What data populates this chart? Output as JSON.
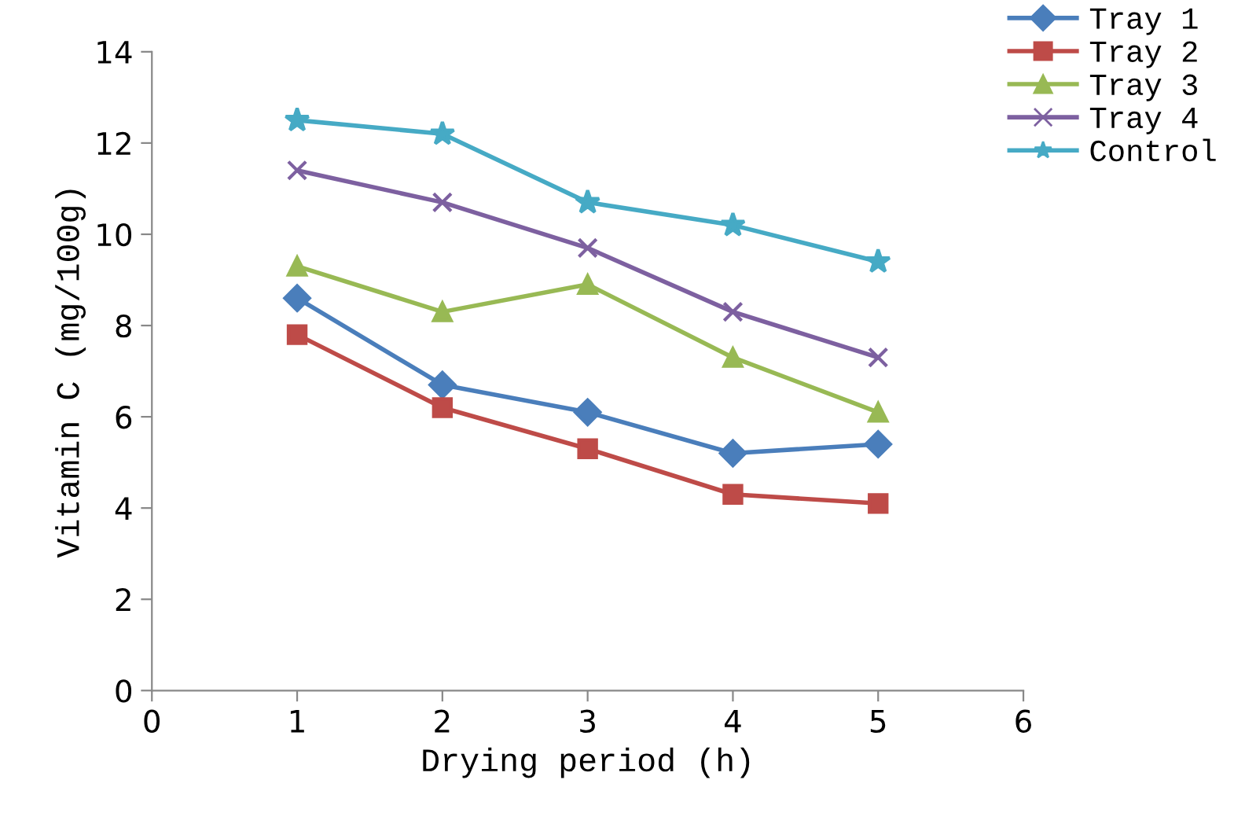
{
  "chart_data": {
    "type": "line",
    "xlabel": "Drying period (h)",
    "ylabel": "Vitamin C (mg/100g)",
    "x": [
      1,
      2,
      3,
      4,
      5
    ],
    "series": [
      {
        "name": "Tray 1",
        "color": "#4a7ebb",
        "marker": "diamond",
        "values": [
          8.6,
          6.7,
          6.1,
          5.2,
          5.4
        ]
      },
      {
        "name": "Tray 2",
        "color": "#be4b48",
        "marker": "square",
        "values": [
          7.8,
          6.2,
          5.3,
          4.3,
          4.1
        ]
      },
      {
        "name": "Tray 3",
        "color": "#98b954",
        "marker": "triangle",
        "values": [
          9.3,
          8.3,
          8.9,
          7.3,
          6.1
        ]
      },
      {
        "name": "Tray 4",
        "color": "#7d60a0",
        "marker": "cross",
        "values": [
          11.4,
          10.7,
          9.7,
          8.3,
          7.3
        ]
      },
      {
        "name": "Control",
        "color": "#46aac5",
        "marker": "star",
        "values": [
          12.5,
          12.2,
          10.7,
          10.2,
          9.4
        ]
      }
    ],
    "xlim": [
      0,
      6
    ],
    "xticks": [
      0,
      1,
      2,
      3,
      4,
      5,
      6
    ],
    "ylim": [
      0,
      14
    ],
    "yticks": [
      0,
      2,
      4,
      6,
      8,
      10,
      12,
      14
    ],
    "grid": false,
    "legend": "top right",
    "line_style": "solid"
  }
}
